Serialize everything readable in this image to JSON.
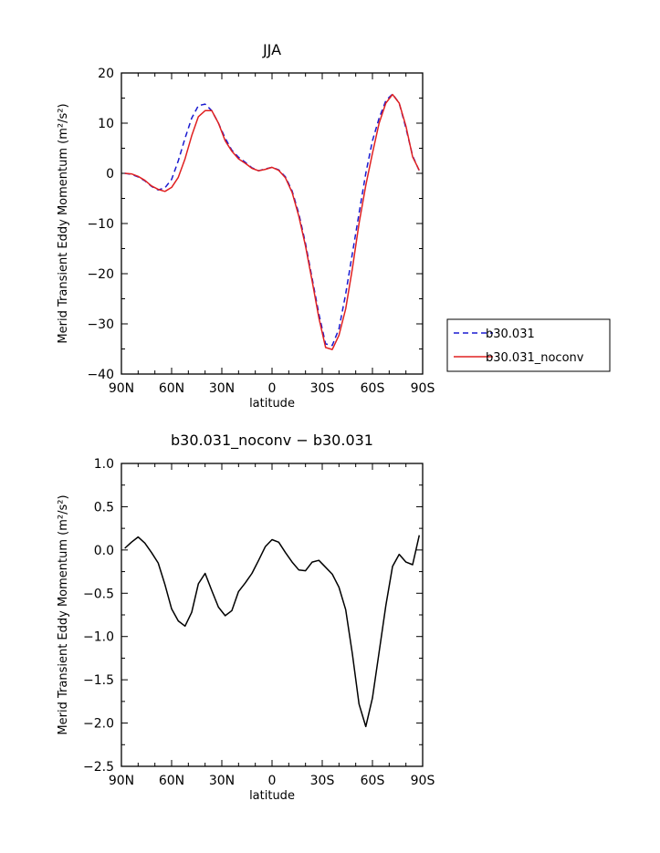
{
  "chart_data": [
    {
      "type": "line",
      "title": "JJA",
      "xlabel": "latitude",
      "ylabel": "Merid Transient Eddy Momentum (m²/s²)",
      "xlim": [
        -90,
        90
      ],
      "ylim": [
        -40,
        20
      ],
      "x_tick_values": [
        -90,
        -60,
        -30,
        0,
        30,
        60,
        90
      ],
      "x_tick_labels": [
        "90N",
        "60N",
        "30N",
        "0",
        "30S",
        "60S",
        "90S"
      ],
      "y_tick_values": [
        -40,
        -30,
        -20,
        -10,
        0,
        10,
        20
      ],
      "y_tick_labels": [
        "−40",
        "−30",
        "−20",
        "−10",
        "0",
        "10",
        "20"
      ],
      "grid": false,
      "legend_position": "outside-right",
      "x": [
        -88,
        -84,
        -80,
        -76,
        -72,
        -68,
        -64,
        -60,
        -56,
        -52,
        -48,
        -44,
        -40,
        -36,
        -32,
        -28,
        -24,
        -20,
        -16,
        -12,
        -8,
        -4,
        0,
        4,
        8,
        12,
        16,
        20,
        24,
        28,
        32,
        36,
        40,
        44,
        48,
        52,
        56,
        60,
        64,
        68,
        72,
        76,
        80,
        84,
        88
      ],
      "series": [
        {
          "name": "b30.031",
          "color": "#1a1ad0",
          "dash": "dashed",
          "values": [
            0,
            -0.2,
            -0.7,
            -1.5,
            -2.6,
            -3.3,
            -2.9,
            -1.2,
            2.5,
            7,
            11,
            13.5,
            13.8,
            12.5,
            10,
            7,
            4.6,
            3.2,
            2.2,
            1.1,
            0.5,
            0.9,
            1.2,
            0.7,
            -0.7,
            -3.5,
            -8,
            -14,
            -21,
            -28,
            -34,
            -34.3,
            -31,
            -24,
            -16,
            -8,
            0,
            6.5,
            11,
            14.5,
            15.8,
            14,
            9,
            3.5,
            0.5
          ]
        },
        {
          "name": "b30.031_noconv",
          "color": "#e02020",
          "dash": "solid",
          "values": [
            0,
            -0.1,
            -0.6,
            -1.4,
            -2.5,
            -3.2,
            -3.6,
            -2.8,
            -0.8,
            2.9,
            7.5,
            11.3,
            12.5,
            12.5,
            10,
            6.5,
            4.4,
            2.9,
            2,
            1,
            0.5,
            0.8,
            1.2,
            0.6,
            -0.9,
            -3.8,
            -8.5,
            -14.5,
            -21.5,
            -28.8,
            -34.7,
            -35.1,
            -32.3,
            -27,
            -19,
            -10,
            -2.4,
            4,
            10,
            14,
            15.7,
            14,
            9.4,
            3.3,
            0.6
          ]
        }
      ]
    },
    {
      "type": "line",
      "title": "b30.031_noconv − b30.031",
      "xlabel": "latitude",
      "ylabel": "Merid Transient Eddy Momentum (m²/s²)",
      "xlim": [
        -90,
        90
      ],
      "ylim": [
        -2.5,
        1.0
      ],
      "x_tick_values": [
        -90,
        -60,
        -30,
        0,
        30,
        60,
        90
      ],
      "x_tick_labels": [
        "90N",
        "60N",
        "30N",
        "0",
        "30S",
        "60S",
        "90S"
      ],
      "y_tick_values": [
        -2.5,
        -2.0,
        -1.5,
        -1.0,
        -0.5,
        0.0,
        0.5,
        1.0
      ],
      "y_tick_labels": [
        "−2.5",
        "−2.0",
        "−1.5",
        "−1.0",
        "−0.5",
        "0.0",
        "0.5",
        "1.0"
      ],
      "grid": false,
      "x": [
        -88,
        -84,
        -80,
        -76,
        -72,
        -68,
        -64,
        -60,
        -56,
        -52,
        -48,
        -44,
        -40,
        -36,
        -32,
        -28,
        -24,
        -20,
        -16,
        -12,
        -8,
        -4,
        0,
        4,
        8,
        12,
        16,
        20,
        24,
        28,
        32,
        36,
        40,
        44,
        48,
        52,
        56,
        60,
        64,
        68,
        72,
        76,
        80,
        84,
        88
      ],
      "series": [
        {
          "name": "",
          "color": "#000000",
          "dash": "solid",
          "values": [
            0.02,
            0.09,
            0.15,
            0.08,
            -0.03,
            -0.15,
            -0.4,
            -0.68,
            -0.82,
            -0.88,
            -0.72,
            -0.39,
            -0.27,
            -0.47,
            -0.66,
            -0.76,
            -0.7,
            -0.48,
            -0.38,
            -0.27,
            -0.12,
            0.04,
            0.12,
            0.09,
            -0.03,
            -0.14,
            -0.23,
            -0.24,
            -0.14,
            -0.12,
            -0.2,
            -0.28,
            -0.43,
            -0.69,
            -1.2,
            -1.78,
            -2.04,
            -1.71,
            -1.18,
            -0.64,
            -0.19,
            -0.05,
            -0.14,
            -0.17,
            0.17
          ]
        }
      ]
    }
  ]
}
